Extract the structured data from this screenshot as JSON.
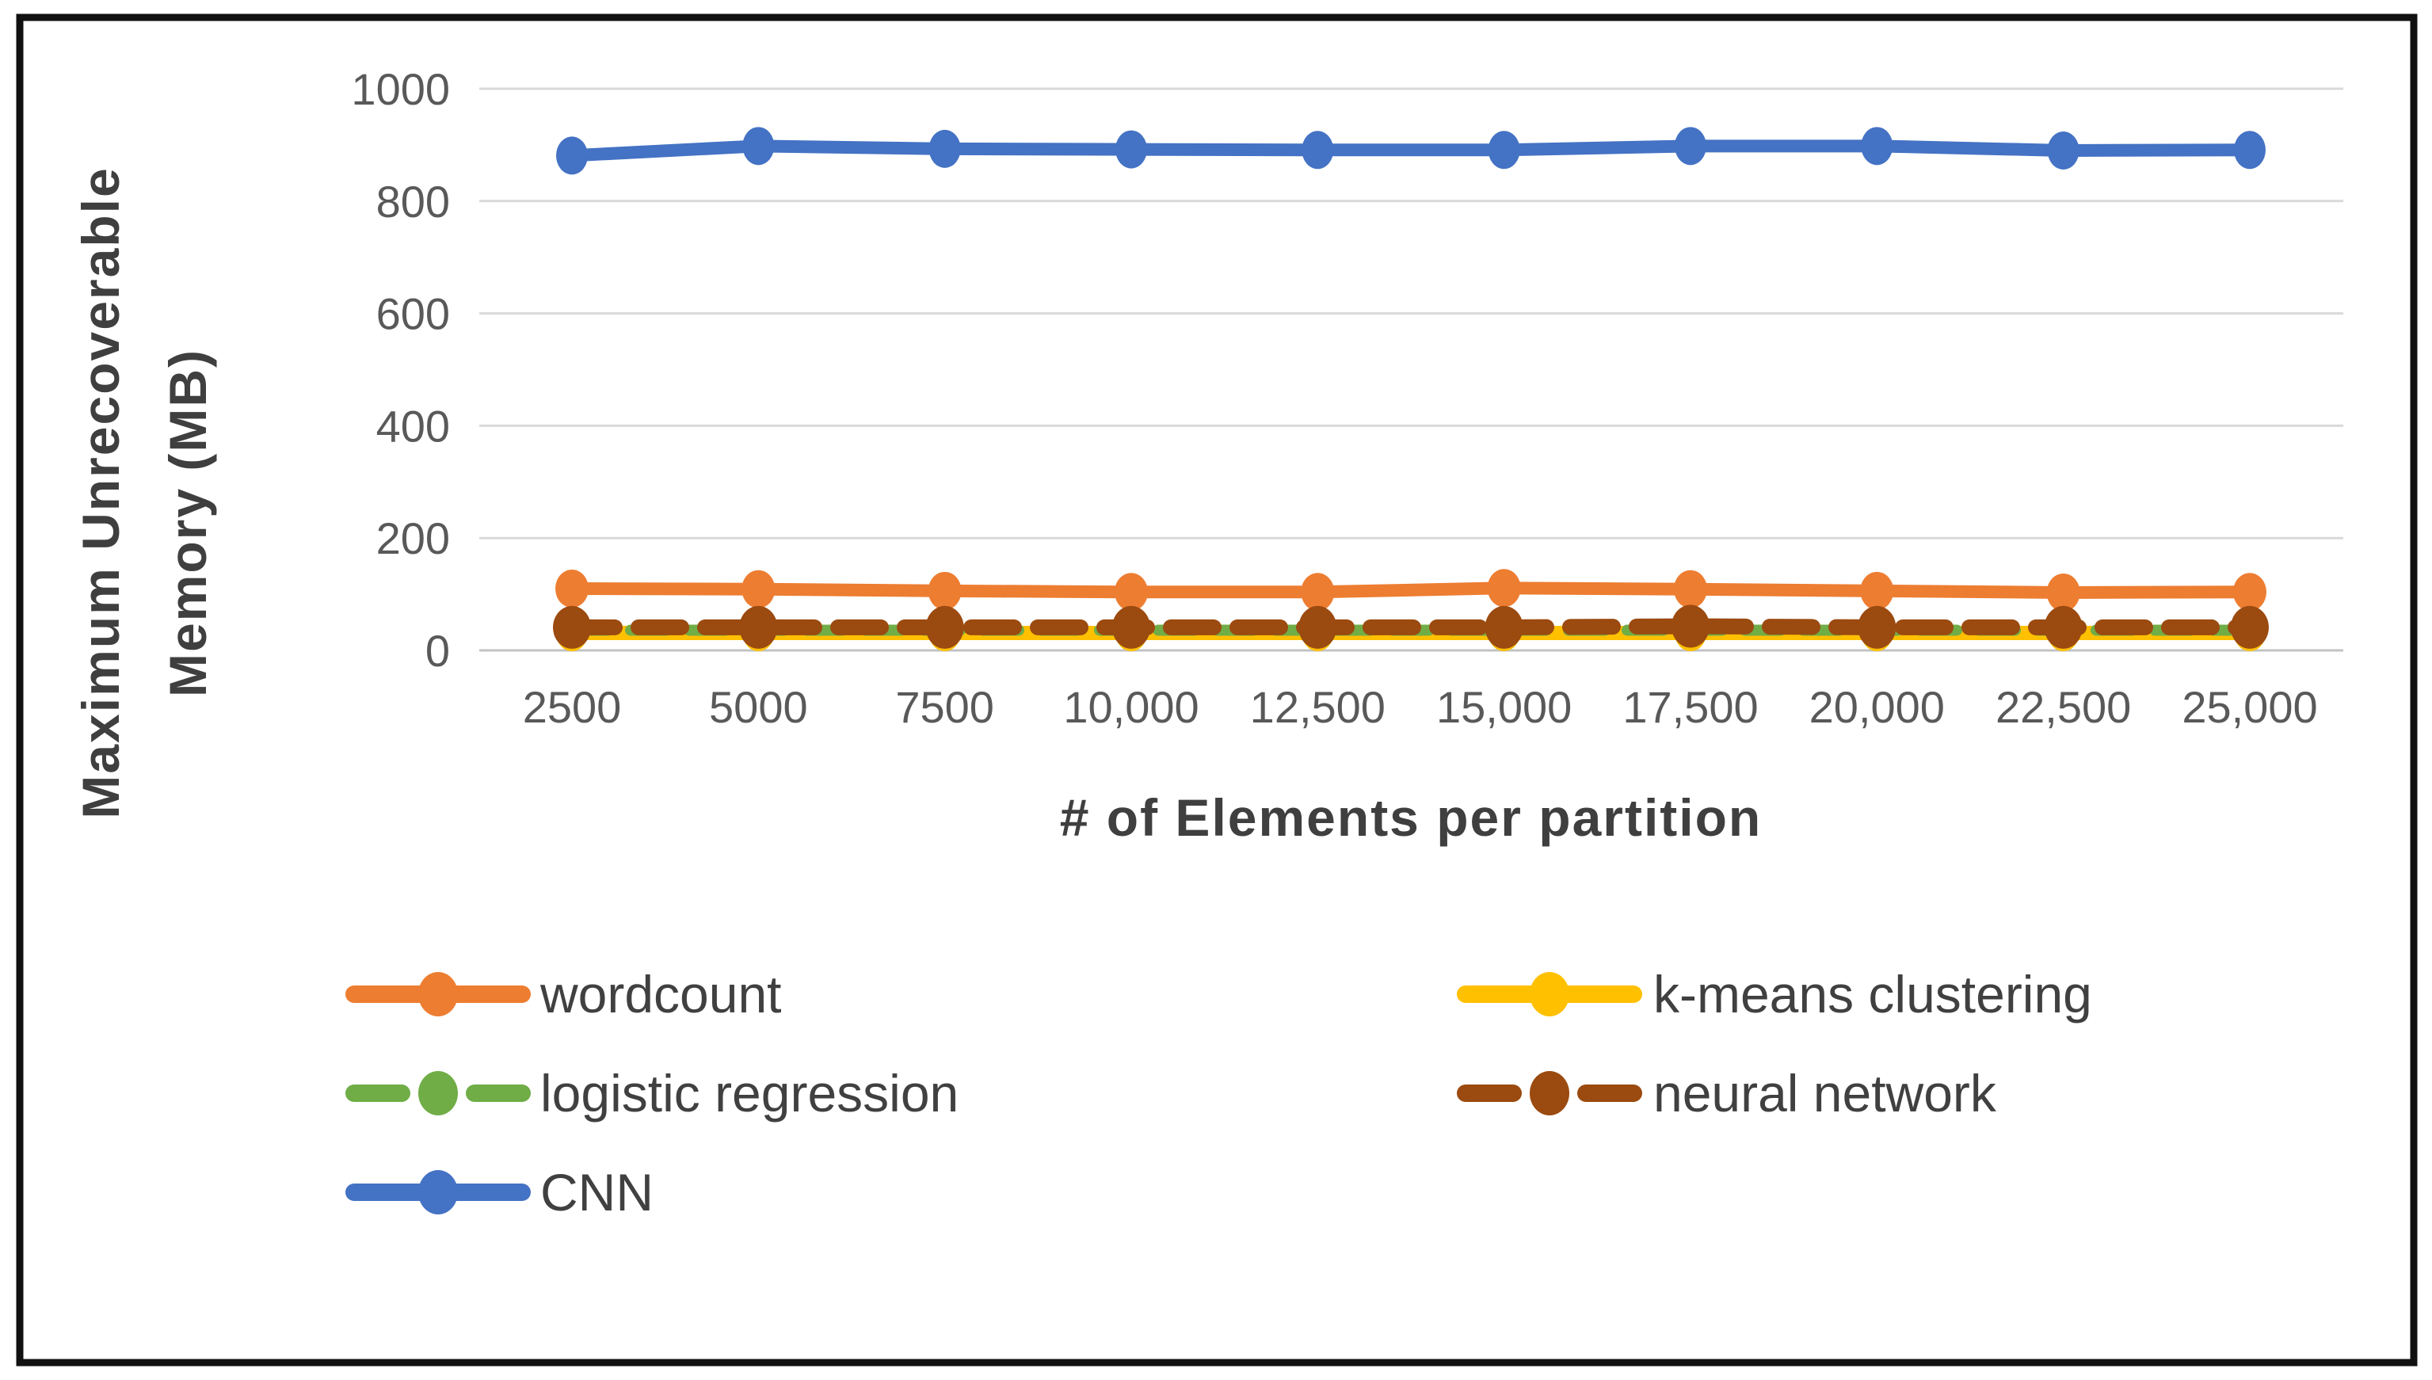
{
  "figure": {
    "background": "#ffffff",
    "border_color": "#111111",
    "gridline_color": "#D9D9D9",
    "zero_line_color": "#C3C3C3",
    "tick_label_color": "#595959",
    "title_color": "#3F3F3F",
    "legend_text_color": "#404040"
  },
  "chart_data": {
    "type": "line",
    "title": "",
    "xlabel": "# of Elements per partition",
    "ylabel": "Maximum Unrecoverable Memory (MB)",
    "ylabel_lines": [
      "Maximum Unrecoverable",
      "Memory (MB)"
    ],
    "categories": [
      "2500",
      "5000",
      "7500",
      "10,000",
      "12,500",
      "15,000",
      "17,500",
      "20,000",
      "22,500",
      "25,000"
    ],
    "series": [
      {
        "name": "wordcount",
        "color": "#ED7D31",
        "dash": "solid",
        "values": [
          110,
          109,
          106,
          104,
          104,
          111,
          109,
          106,
          103,
          104
        ]
      },
      {
        "name": "k-means clustering",
        "color": "#FFC000",
        "dash": "solid",
        "values": [
          31,
          31,
          31,
          31,
          31,
          31,
          31,
          31,
          31,
          31
        ]
      },
      {
        "name": "logistic regression",
        "color": "#70AD47",
        "dash": "dashed",
        "values": [
          36,
          36,
          36,
          36,
          36,
          36,
          36,
          36,
          36,
          36
        ]
      },
      {
        "name": "neural network",
        "color": "#9B4A10",
        "dash": "dashed",
        "values": [
          41,
          41,
          41,
          41,
          41,
          41,
          43,
          41,
          41,
          41
        ]
      },
      {
        "name": "CNN",
        "color": "#4472C4",
        "dash": "solid",
        "values": [
          881,
          898,
          893,
          892,
          891,
          891,
          898,
          898,
          890,
          891
        ]
      }
    ],
    "ylim": [
      0,
      1000
    ],
    "yticks": [
      1000,
      800,
      600,
      400,
      200,
      0
    ],
    "ytick_step": 200,
    "grid": "horizontal",
    "legend_position": "bottom",
    "legend_columns": 2
  }
}
